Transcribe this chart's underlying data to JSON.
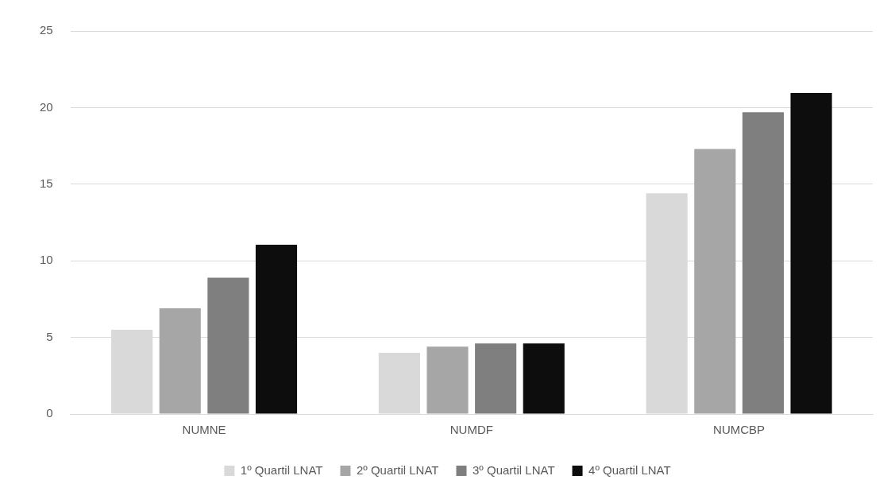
{
  "chart_data": {
    "type": "bar",
    "categories": [
      "NUMNE",
      "NUMDF",
      "NUMCBP"
    ],
    "series": [
      {
        "name": "1º Quartil LNAT",
        "color": "#d9d9d9",
        "values": [
          5.5,
          4.0,
          14.4
        ]
      },
      {
        "name": "2º Quartil LNAT",
        "color": "#a6a6a6",
        "values": [
          6.9,
          4.4,
          17.3
        ]
      },
      {
        "name": "3º Quartil LNAT",
        "color": "#7f7f7f",
        "values": [
          8.9,
          4.6,
          19.7
        ]
      },
      {
        "name": "4º Quartil LNAT",
        "color": "#0d0d0d",
        "values": [
          11.05,
          4.6,
          20.95
        ]
      }
    ],
    "ylim": [
      0,
      25
    ],
    "yticks": [
      0,
      5,
      10,
      15,
      20,
      25
    ],
    "grid": "y",
    "legend": "bottom"
  }
}
